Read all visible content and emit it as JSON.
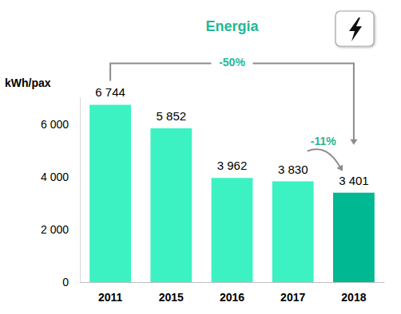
{
  "chart_data": {
    "type": "bar",
    "title": "Energia",
    "y_label": "kWh/pax",
    "categories": [
      "2011",
      "2015",
      "2016",
      "2017",
      "2018"
    ],
    "values": [
      6744,
      5852,
      3962,
      3830,
      3401
    ],
    "value_labels": [
      "6 744",
      "5 852",
      "3 962",
      "3 830",
      "3 401"
    ],
    "colors": [
      "#3cf2c2",
      "#3cf2c2",
      "#3cf2c2",
      "#3cf2c2",
      "#00b891"
    ],
    "ylim": [
      0,
      7000
    ],
    "yticks": [
      0,
      {
        "value": 2000,
        "label": "2 000"
      },
      {
        "value": 4000,
        "label": "4 000"
      },
      {
        "value": 6000,
        "label": "6 000"
      }
    ],
    "grid": false,
    "data_labels": true,
    "annotations": [
      {
        "text": "-50%",
        "from": "2011",
        "to": "2018"
      },
      {
        "text": "-11%",
        "from": "2017",
        "to": "2018"
      }
    ]
  }
}
